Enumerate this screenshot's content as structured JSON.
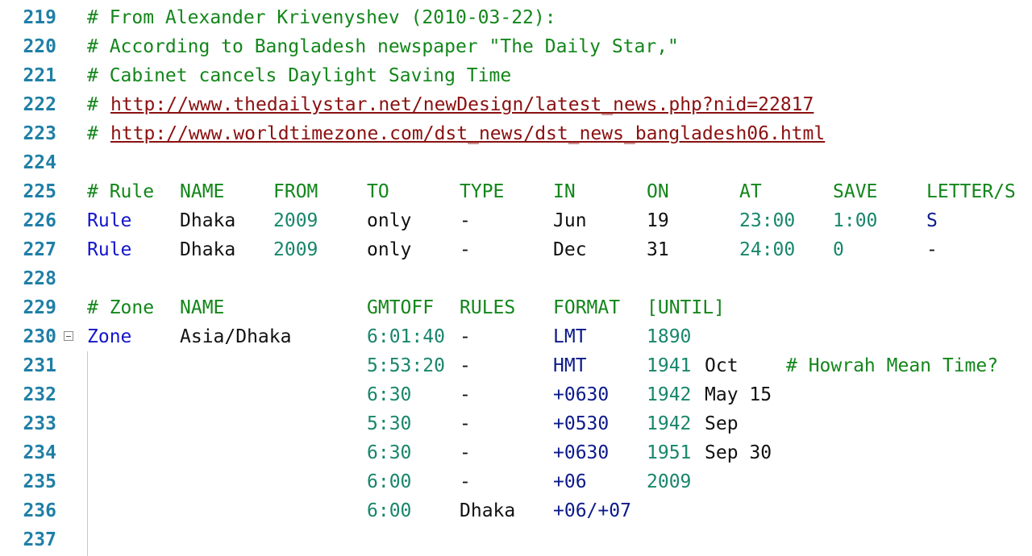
{
  "line_numbers": [
    "219",
    "220",
    "221",
    "222",
    "223",
    "224",
    "225",
    "226",
    "227",
    "228",
    "229",
    "230",
    "231",
    "232",
    "233",
    "234",
    "235",
    "236",
    "237"
  ],
  "comments": {
    "l219": "# From Alexander Krivenyshev (2010-03-22):",
    "l220": "# According to Bangladesh newspaper \"The Daily Star,\"",
    "l221": "# Cabinet cancels Daylight Saving Time",
    "l222_hash": "#",
    "l222_url": "http://www.thedailystar.net/newDesign/latest_news.php?nid=22817",
    "l223_hash": "#",
    "l223_url": "http://www.worldtimezone.com/dst_news/dst_news_bangladesh06.html",
    "l231_trailing": "# Howrah Mean Time?"
  },
  "rule_header": [
    "# Rule",
    "NAME",
    "FROM",
    "TO",
    "TYPE",
    "IN",
    "ON",
    "AT",
    "SAVE",
    "LETTER/S"
  ],
  "rules": [
    {
      "kw": "Rule",
      "name": "Dhaka",
      "from": "2009",
      "to": "only",
      "type": "-",
      "in": "Jun",
      "on": "19",
      "at": "23:00",
      "save": "1:00",
      "letter": "S"
    },
    {
      "kw": "Rule",
      "name": "Dhaka",
      "from": "2009",
      "to": "only",
      "type": "-",
      "in": "Dec",
      "on": "31",
      "at": "24:00",
      "save": "0",
      "letter": "-"
    }
  ],
  "zone_header": [
    "# Zone",
    "NAME",
    "GMTOFF",
    "RULES",
    "FORMAT",
    "[UNTIL]"
  ],
  "zone": {
    "kw": "Zone",
    "name": "Asia/Dhaka",
    "lines": [
      {
        "gmtoff": "6:01:40",
        "rules": "-",
        "format": "LMT",
        "year": "1890",
        "rest": ""
      },
      {
        "gmtoff": "5:53:20",
        "rules": "-",
        "format": "HMT",
        "year": "1941",
        "rest": "Oct"
      },
      {
        "gmtoff": "6:30",
        "rules": "-",
        "format": "+0630",
        "year": "1942",
        "rest": "May 15"
      },
      {
        "gmtoff": "5:30",
        "rules": "-",
        "format": "+0530",
        "year": "1942",
        "rest": "Sep"
      },
      {
        "gmtoff": "6:30",
        "rules": "-",
        "format": "+0630",
        "year": "1951",
        "rest": "Sep 30"
      },
      {
        "gmtoff": "6:00",
        "rules": "-",
        "format": "+06",
        "year": "2009",
        "rest": ""
      },
      {
        "gmtoff": "6:00",
        "rules": "Dhaka",
        "format": "+06/+07",
        "year": "",
        "rest": ""
      }
    ]
  },
  "colors": {
    "comment": "#13861b",
    "keyword": "#1414cc",
    "number": "#18866b",
    "url": "#8b1010",
    "line_number": "#1f7fa6"
  },
  "icons": {
    "fold": "fold-minus-icon"
  }
}
